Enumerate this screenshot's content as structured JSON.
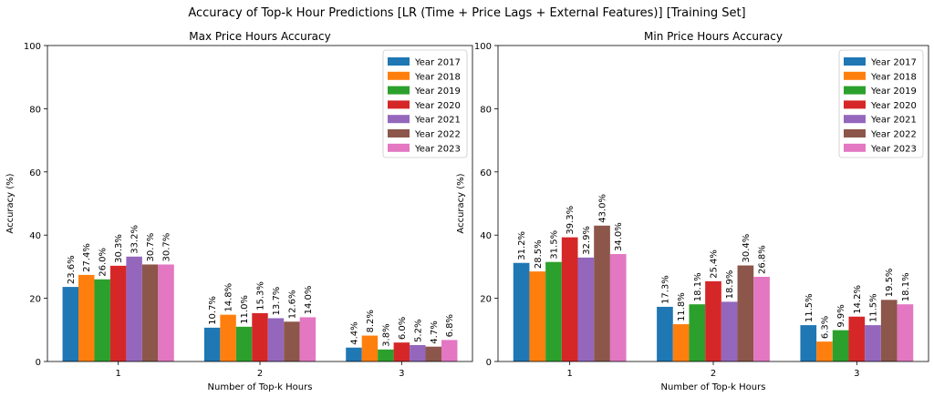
{
  "figure_title": "Accuracy of Top-k Hour Predictions [LR (Time + Price Lags + External Features)] [Training Set]",
  "colors": [
    "#1f77b4",
    "#ff7f0e",
    "#2ca02c",
    "#d62728",
    "#9467bd",
    "#8c564b",
    "#e377c2"
  ],
  "chart_data": [
    {
      "type": "bar",
      "title": "Max Price Hours Accuracy",
      "xlabel": "Number of Top-k Hours",
      "ylabel": "Accuracy (%)",
      "ylim": [
        0,
        100
      ],
      "yticks": [
        0,
        20,
        40,
        60,
        80,
        100
      ],
      "categories": [
        "1",
        "2",
        "3"
      ],
      "legend_position": "top-right",
      "series": [
        {
          "name": "Year 2017",
          "values": [
            23.6,
            10.7,
            4.4
          ],
          "labels": [
            "23.6%",
            "10.7%",
            "4.4%"
          ]
        },
        {
          "name": "Year 2018",
          "values": [
            27.4,
            14.8,
            8.2
          ],
          "labels": [
            "27.4%",
            "14.8%",
            "8.2%"
          ]
        },
        {
          "name": "Year 2019",
          "values": [
            26.0,
            11.0,
            3.8
          ],
          "labels": [
            "26.0%",
            "11.0%",
            "3.8%"
          ]
        },
        {
          "name": "Year 2020",
          "values": [
            30.3,
            15.3,
            6.0
          ],
          "labels": [
            "30.3%",
            "15.3%",
            "6.0%"
          ]
        },
        {
          "name": "Year 2021",
          "values": [
            33.2,
            13.7,
            5.2
          ],
          "labels": [
            "33.2%",
            "13.7%",
            "5.2%"
          ]
        },
        {
          "name": "Year 2022",
          "values": [
            30.7,
            12.6,
            4.7
          ],
          "labels": [
            "30.7%",
            "12.6%",
            "4.7%"
          ]
        },
        {
          "name": "Year 2023",
          "values": [
            30.7,
            14.0,
            6.8
          ],
          "labels": [
            "30.7%",
            "14.0%",
            "6.8%"
          ]
        }
      ]
    },
    {
      "type": "bar",
      "title": "Min Price Hours Accuracy",
      "xlabel": "Number of Top-k Hours",
      "ylabel": "Accuracy (%)",
      "ylim": [
        0,
        100
      ],
      "yticks": [
        0,
        20,
        40,
        60,
        80,
        100
      ],
      "categories": [
        "1",
        "2",
        "3"
      ],
      "legend_position": "top-right",
      "series": [
        {
          "name": "Year 2017",
          "values": [
            31.2,
            17.3,
            11.5
          ],
          "labels": [
            "31.2%",
            "17.3%",
            "11.5%"
          ]
        },
        {
          "name": "Year 2018",
          "values": [
            28.5,
            11.8,
            6.3
          ],
          "labels": [
            "28.5%",
            "11.8%",
            "6.3%"
          ]
        },
        {
          "name": "Year 2019",
          "values": [
            31.5,
            18.1,
            9.9
          ],
          "labels": [
            "31.5%",
            "18.1%",
            "9.9%"
          ]
        },
        {
          "name": "Year 2020",
          "values": [
            39.3,
            25.4,
            14.2
          ],
          "labels": [
            "39.3%",
            "25.4%",
            "14.2%"
          ]
        },
        {
          "name": "Year 2021",
          "values": [
            32.9,
            18.9,
            11.5
          ],
          "labels": [
            "32.9%",
            "18.9%",
            "11.5%"
          ]
        },
        {
          "name": "Year 2022",
          "values": [
            43.0,
            30.4,
            19.5
          ],
          "labels": [
            "43.0%",
            "30.4%",
            "19.5%"
          ]
        },
        {
          "name": "Year 2023",
          "values": [
            34.0,
            26.8,
            18.1
          ],
          "labels": [
            "34.0%",
            "26.8%",
            "18.1%"
          ]
        }
      ]
    }
  ]
}
